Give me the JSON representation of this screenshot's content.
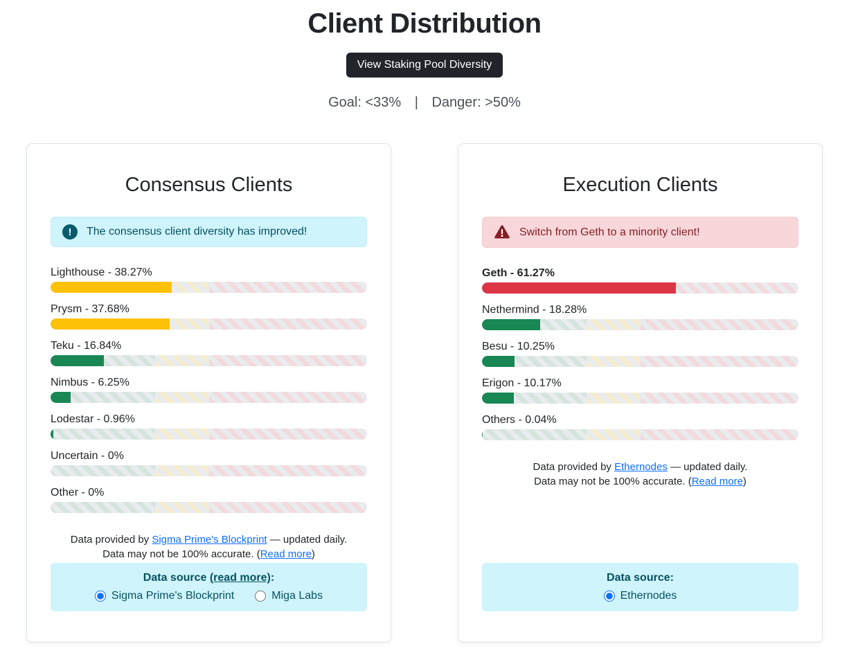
{
  "header": {
    "title": "Client Distribution",
    "button_label": "View Staking Pool Diversity",
    "goal_text": "Goal: <33%",
    "separator": "|",
    "danger_text": "Danger: >50%"
  },
  "zones": {
    "goal_max_pct": 33,
    "danger_min_pct": 50
  },
  "colors": {
    "warning_fill": "#ffc107",
    "success_fill": "#198754",
    "danger_fill": "#dc3545",
    "accent_blue": "#0d6efd",
    "info_bg": "#cff4fc",
    "info_text": "#055160",
    "danger_bg": "#f8d7da",
    "danger_text": "#842029",
    "track_bg": "#e9ecef"
  },
  "consensus": {
    "title": "Consensus Clients",
    "alert_text": "The consensus client diversity has improved!",
    "bars": [
      {
        "name": "Lighthouse",
        "label": "Lighthouse - 38.27%",
        "pct": 38.27,
        "color": "#ffc107",
        "bold": false
      },
      {
        "name": "Prysm",
        "label": "Prysm - 37.68%",
        "pct": 37.68,
        "color": "#ffc107",
        "bold": false
      },
      {
        "name": "Teku",
        "label": "Teku - 16.84%",
        "pct": 16.84,
        "color": "#198754",
        "bold": false
      },
      {
        "name": "Nimbus",
        "label": "Nimbus - 6.25%",
        "pct": 6.25,
        "color": "#198754",
        "bold": false
      },
      {
        "name": "Lodestar",
        "label": "Lodestar - 0.96%",
        "pct": 0.96,
        "color": "#198754",
        "bold": false
      },
      {
        "name": "Uncertain",
        "label": "Uncertain - 0%",
        "pct": 0,
        "color": "#198754",
        "bold": false
      },
      {
        "name": "Other",
        "label": "Other - 0%",
        "pct": 0,
        "color": "#198754",
        "bold": false
      }
    ],
    "footnote": {
      "line1_prefix": "Data provided by ",
      "line1_link": "Sigma Prime's Blockprint",
      "line1_suffix": " — updated daily.",
      "line2_prefix": "Data may not be 100% accurate. (",
      "line2_link": "Read more",
      "line2_suffix": ")"
    },
    "source_box": {
      "title_prefix": "Data source ",
      "title_link": "(read more)",
      "title_suffix": ":",
      "options": [
        {
          "label": "Sigma Prime's Blockprint",
          "selected": true
        },
        {
          "label": "Miga Labs",
          "selected": false
        }
      ]
    }
  },
  "execution": {
    "title": "Execution Clients",
    "alert_text": "Switch from Geth to a minority client!",
    "bars": [
      {
        "name": "Geth",
        "label": "Geth - 61.27%",
        "pct": 61.27,
        "color": "#dc3545",
        "bold": true
      },
      {
        "name": "Nethermind",
        "label": "Nethermind - 18.28%",
        "pct": 18.28,
        "color": "#198754",
        "bold": false
      },
      {
        "name": "Besu",
        "label": "Besu - 10.25%",
        "pct": 10.25,
        "color": "#198754",
        "bold": false
      },
      {
        "name": "Erigon",
        "label": "Erigon - 10.17%",
        "pct": 10.17,
        "color": "#198754",
        "bold": false
      },
      {
        "name": "Others",
        "label": "Others - 0.04%",
        "pct": 0.04,
        "color": "#198754",
        "bold": false
      }
    ],
    "footnote": {
      "line1_prefix": "Data provided by ",
      "line1_link": "Ethernodes",
      "line1_suffix": " — updated daily.",
      "line2_prefix": "Data may not be 100% accurate. (",
      "line2_link": "Read more",
      "line2_suffix": ")"
    },
    "source_box": {
      "title_prefix": "Data source",
      "title_link": "",
      "title_suffix": ":",
      "options": [
        {
          "label": "Ethernodes",
          "selected": true
        }
      ]
    }
  }
}
